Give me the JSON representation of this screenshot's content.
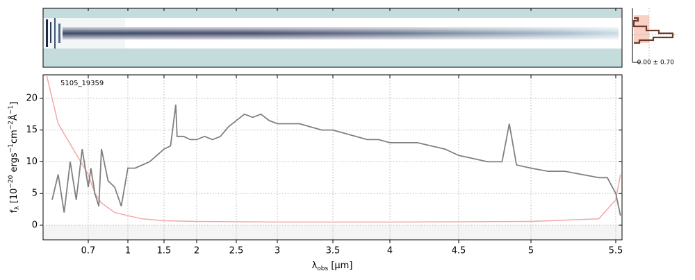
{
  "chart_data": {
    "type": "line",
    "annotation": "5105_19359",
    "side_label": "0.00 ± 0.70",
    "xlabel_parts": [
      "λ",
      "obs",
      " [μm]"
    ],
    "ylabel_parts": [
      "f",
      "λ",
      " [10",
      "−20",
      " ergs",
      "−1",
      "cm",
      "−2",
      "Å",
      "−1",
      "]"
    ],
    "xlim": [
      0.55,
      5.54
    ],
    "ylim": [
      -2.3,
      23.7
    ],
    "xticks": [
      0.7,
      1.0,
      1.5,
      2.0,
      2.5,
      3.0,
      3.5,
      4.0,
      4.5,
      5.0,
      5.5
    ],
    "yticks": [
      0,
      5,
      10,
      15,
      20
    ],
    "grid": true,
    "series": [
      {
        "color": "#808080",
        "x": [
          0.58,
          0.6,
          0.62,
          0.64,
          0.66,
          0.68,
          0.7,
          0.72,
          0.75,
          0.78,
          0.8,
          0.85,
          0.9,
          0.95,
          1.0,
          1.1,
          1.2,
          1.3,
          1.4,
          1.5,
          1.6,
          1.68,
          1.7,
          1.8,
          1.9,
          2.0,
          2.1,
          2.2,
          2.3,
          2.4,
          2.5,
          2.6,
          2.7,
          2.8,
          2.9,
          3.0,
          3.1,
          3.2,
          3.3,
          3.4,
          3.5,
          3.6,
          3.7,
          3.8,
          3.9,
          4.0,
          4.1,
          4.2,
          4.3,
          4.4,
          4.5,
          4.6,
          4.7,
          4.8,
          4.85,
          4.9,
          5.0,
          5.1,
          5.2,
          5.3,
          5.4,
          5.45,
          5.5,
          5.53
        ],
        "values": [
          4,
          8,
          2,
          10,
          4,
          12,
          6,
          9,
          5,
          3,
          12,
          7,
          6,
          3,
          9,
          9,
          9.5,
          10,
          11,
          12,
          12.5,
          19,
          14,
          14,
          13.5,
          13.5,
          14,
          13.5,
          14,
          15.5,
          16.5,
          17.5,
          17,
          17.5,
          16.5,
          16,
          16,
          16,
          15.5,
          15,
          15,
          14.5,
          14,
          13.5,
          13.5,
          13,
          13,
          13,
          12.5,
          12,
          11,
          10.5,
          10,
          10,
          16,
          9.5,
          9,
          8.5,
          8.5,
          8,
          7.5,
          7.5,
          5,
          1.5
        ]
      },
      {
        "color": "#f4a6a6",
        "x": [
          0.56,
          0.6,
          0.65,
          0.7,
          0.75,
          0.8,
          0.9,
          1.0,
          1.2,
          1.5,
          2.0,
          3.0,
          4.0,
          5.0,
          5.4,
          5.5,
          5.53
        ],
        "values": [
          24,
          16,
          12,
          8,
          5,
          3.5,
          2,
          1.5,
          1,
          0.7,
          0.6,
          0.5,
          0.5,
          0.6,
          1,
          4,
          8
        ]
      }
    ]
  }
}
